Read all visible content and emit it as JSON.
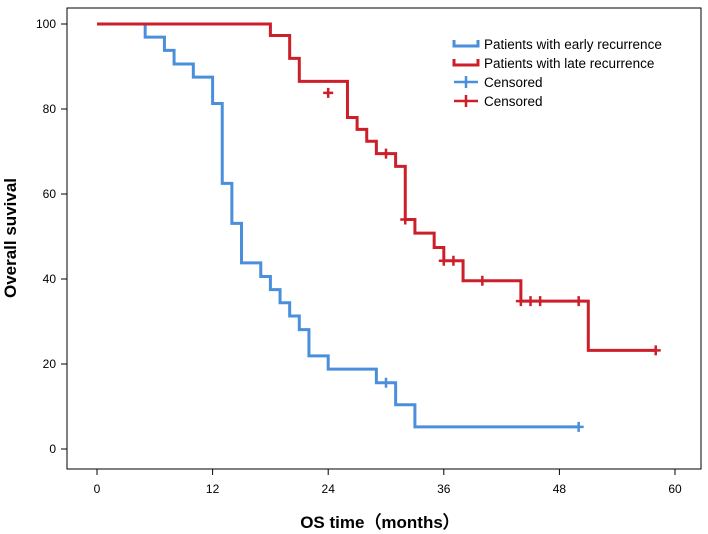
{
  "chart_data": {
    "type": "line",
    "subtype": "kaplan-meier",
    "title": "",
    "xlabel": "OS time（months）",
    "ylabel": "Overall suvival",
    "xlim": [
      0,
      60
    ],
    "ylim": [
      0,
      100
    ],
    "xticks": [
      0,
      12,
      24,
      36,
      48,
      60
    ],
    "yticks": [
      0,
      20,
      40,
      60,
      80,
      100
    ],
    "grid": false,
    "legend_position": "top-right",
    "legend": [
      {
        "label": "Patients with early recurrence",
        "color": "#4a8fdb",
        "marker": "step"
      },
      {
        "label": "Patients with late recurrence",
        "color": "#cc1f2a",
        "marker": "step"
      },
      {
        "label": "Censored",
        "color": "#4a8fdb",
        "marker": "plus"
      },
      {
        "label": "Censored",
        "color": "#cc1f2a",
        "marker": "plus"
      }
    ],
    "series": [
      {
        "name": "Patients with early recurrence",
        "color": "#4a8fdb",
        "steps": [
          [
            0,
            100
          ],
          [
            5,
            96.9
          ],
          [
            7,
            93.8
          ],
          [
            8,
            90.6
          ],
          [
            10,
            87.5
          ],
          [
            12,
            81.3
          ],
          [
            13,
            62.5
          ],
          [
            14,
            53.1
          ],
          [
            15,
            43.8
          ],
          [
            17,
            40.6
          ],
          [
            18,
            37.5
          ],
          [
            19,
            34.4
          ],
          [
            20,
            31.3
          ],
          [
            21,
            28.1
          ],
          [
            22,
            21.9
          ],
          [
            24,
            18.8
          ],
          [
            29,
            15.6
          ],
          [
            31,
            10.4
          ],
          [
            33,
            5.2
          ],
          [
            50,
            5.2
          ]
        ],
        "censored": [
          [
            30,
            15.6
          ],
          [
            50,
            5.2
          ]
        ]
      },
      {
        "name": "Patients with late recurrence",
        "color": "#cc1f2a",
        "steps": [
          [
            0,
            100
          ],
          [
            18,
            97.3
          ],
          [
            20,
            91.9
          ],
          [
            21,
            86.5
          ],
          [
            26,
            78.0
          ],
          [
            27,
            75.2
          ],
          [
            28,
            72.4
          ],
          [
            29,
            69.5
          ],
          [
            31,
            66.5
          ],
          [
            32,
            54.0
          ],
          [
            33,
            50.8
          ],
          [
            35,
            47.4
          ],
          [
            36,
            44.3
          ],
          [
            38,
            39.6
          ],
          [
            44,
            34.8
          ],
          [
            51,
            23.2
          ],
          [
            58,
            23.2
          ]
        ],
        "censored": [
          [
            24,
            83.8
          ],
          [
            30,
            69.5
          ],
          [
            32,
            54.0
          ],
          [
            36,
            44.3
          ],
          [
            37,
            44.3
          ],
          [
            40,
            39.6
          ],
          [
            44,
            34.8
          ],
          [
            45,
            34.8
          ],
          [
            46,
            34.8
          ],
          [
            50,
            34.8
          ],
          [
            58,
            23.2
          ]
        ]
      }
    ]
  }
}
